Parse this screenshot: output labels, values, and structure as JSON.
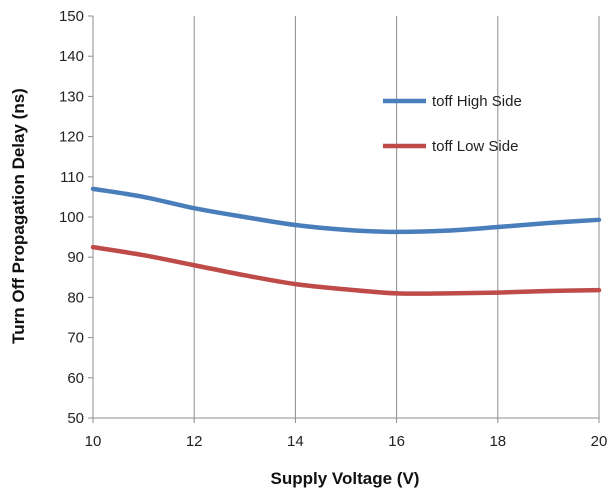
{
  "chart_data": {
    "type": "line",
    "title": "",
    "xlabel": "Supply Voltage (V)",
    "ylabel": "Turn Off Propagation Delay (ns)",
    "xlim": [
      10,
      20
    ],
    "ylim": [
      50,
      150
    ],
    "xticks": [
      10,
      12,
      14,
      16,
      18,
      20
    ],
    "yticks": [
      50,
      60,
      70,
      80,
      90,
      100,
      110,
      120,
      130,
      140,
      150
    ],
    "grid": "vertical gridlines",
    "legend_position": "upper-right, inside plot",
    "series": [
      {
        "name": "toff High Side",
        "color": "#4a7ebb",
        "x": [
          10,
          11,
          12,
          13,
          14,
          15,
          16,
          17,
          18,
          19,
          20
        ],
        "y": [
          107,
          105,
          102.2,
          100,
          98,
          96.8,
          96.3,
          96.6,
          97.5,
          98.5,
          99.3
        ]
      },
      {
        "name": "toff Low Side",
        "color": "#be4b48",
        "x": [
          10,
          11,
          12,
          13,
          14,
          15,
          16,
          17,
          18,
          19,
          20
        ],
        "y": [
          92.5,
          90.5,
          88,
          85.5,
          83.3,
          82,
          81,
          81,
          81.2,
          81.6,
          81.8
        ]
      }
    ]
  }
}
